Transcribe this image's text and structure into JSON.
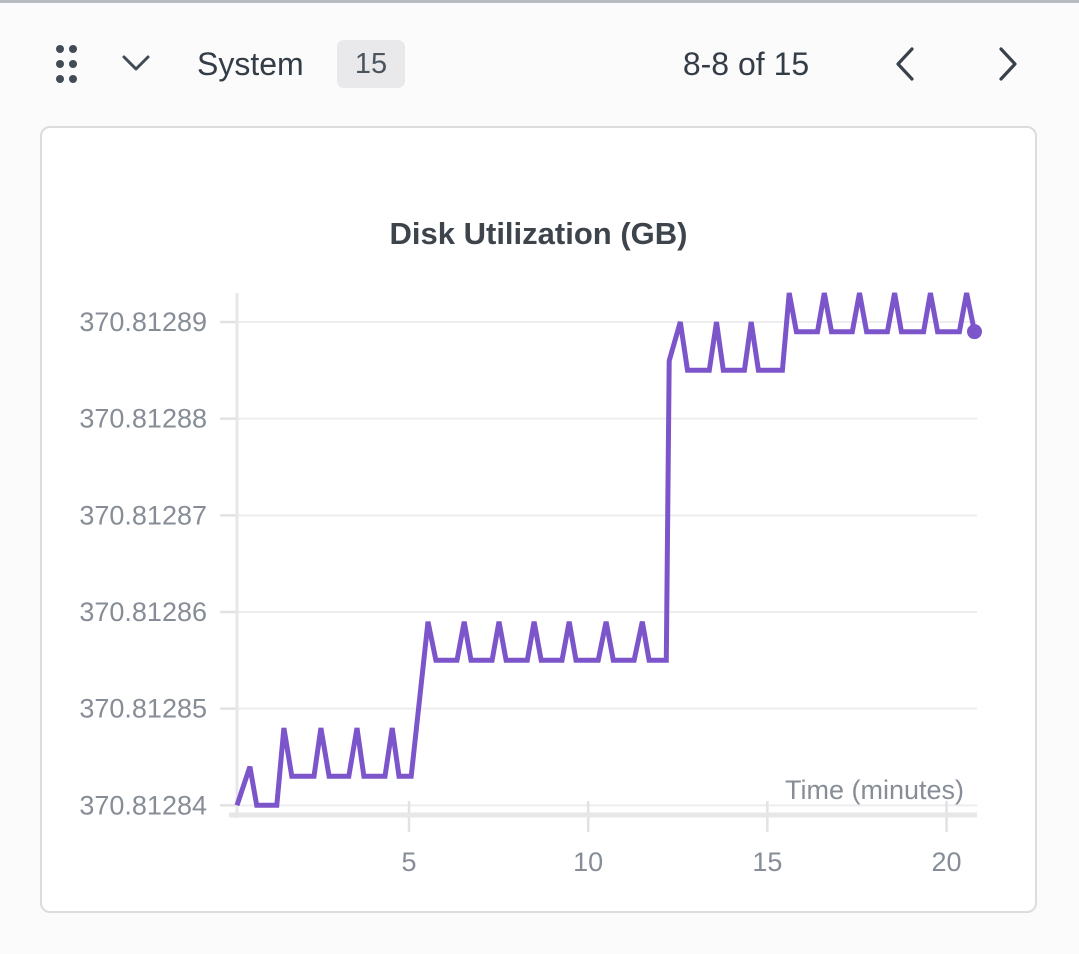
{
  "header": {
    "title": "System",
    "badge_count": "15",
    "pagination": "8-8 of 15",
    "icons": {
      "drag_handle": "six-dot-grid",
      "collapse": "chevron-down",
      "prev": "chevron-left",
      "next": "chevron-right"
    }
  },
  "colors": {
    "series": "#7d55cb",
    "gridline": "#ededef",
    "axis": "#e7e7e9",
    "tick": "#e2e2e4",
    "badge_bg": "#e9e9eb",
    "header_text": "#343c46",
    "icon": "#424a55"
  },
  "chart_data": {
    "type": "line",
    "title": "Disk Utilization (GB)",
    "xlabel": "Time (minutes)",
    "ylabel": "",
    "unit": "GB",
    "grid": "horizontal",
    "legend": "none",
    "end_marker": true,
    "xlim": [
      0.2,
      20.85
    ],
    "ylim": [
      370.812839,
      370.812893
    ],
    "xticks": [
      5,
      10,
      15,
      20
    ],
    "yticks": [
      370.81284,
      370.81285,
      370.81286,
      370.81287,
      370.81288,
      370.81289
    ],
    "ytick_labels": [
      "370.81284",
      "370.81285",
      "370.81286",
      "370.81287",
      "370.81288",
      "370.81289"
    ],
    "series": [
      {
        "name": "Disk Utilization",
        "color": "#7d55cb",
        "points": [
          [
            0.2,
            370.81284
          ],
          [
            0.56,
            370.812844
          ],
          [
            0.75,
            370.81284
          ],
          [
            1.31,
            370.81284
          ],
          [
            1.51,
            370.812848
          ],
          [
            1.73,
            370.812843
          ],
          [
            2.35,
            370.812843
          ],
          [
            2.54,
            370.812848
          ],
          [
            2.77,
            370.812843
          ],
          [
            3.32,
            370.812843
          ],
          [
            3.55,
            370.812848
          ],
          [
            3.74,
            370.812843
          ],
          [
            4.33,
            370.812843
          ],
          [
            4.53,
            370.812848
          ],
          [
            4.72,
            370.812843
          ],
          [
            5.06,
            370.812843
          ],
          [
            5.53,
            370.812859
          ],
          [
            5.75,
            370.812855
          ],
          [
            6.34,
            370.812855
          ],
          [
            6.54,
            370.812859
          ],
          [
            6.73,
            370.812855
          ],
          [
            7.32,
            370.812855
          ],
          [
            7.51,
            370.812859
          ],
          [
            7.71,
            370.812855
          ],
          [
            8.3,
            370.812855
          ],
          [
            8.49,
            370.812859
          ],
          [
            8.69,
            370.812855
          ],
          [
            9.27,
            370.812855
          ],
          [
            9.47,
            370.812859
          ],
          [
            9.66,
            370.812855
          ],
          [
            10.28,
            370.812855
          ],
          [
            10.5,
            370.812859
          ],
          [
            10.7,
            370.812855
          ],
          [
            11.28,
            370.812855
          ],
          [
            11.51,
            370.812859
          ],
          [
            11.7,
            370.812855
          ],
          [
            12.18,
            370.812855
          ],
          [
            12.26,
            370.812886
          ],
          [
            12.57,
            370.81289
          ],
          [
            12.77,
            370.812885
          ],
          [
            13.38,
            370.812885
          ],
          [
            13.58,
            370.81289
          ],
          [
            13.77,
            370.812885
          ],
          [
            14.36,
            370.812885
          ],
          [
            14.55,
            370.81289
          ],
          [
            14.75,
            370.812885
          ],
          [
            15.42,
            370.812885
          ],
          [
            15.61,
            370.812893
          ],
          [
            15.81,
            370.812889
          ],
          [
            16.4,
            370.812889
          ],
          [
            16.59,
            370.812893
          ],
          [
            16.79,
            370.812889
          ],
          [
            17.37,
            370.812889
          ],
          [
            17.57,
            370.812893
          ],
          [
            17.77,
            370.812889
          ],
          [
            18.35,
            370.812889
          ],
          [
            18.55,
            370.812893
          ],
          [
            18.74,
            370.812889
          ],
          [
            19.36,
            370.812889
          ],
          [
            19.55,
            370.812893
          ],
          [
            19.75,
            370.812889
          ],
          [
            20.36,
            370.812889
          ],
          [
            20.56,
            370.812893
          ],
          [
            20.78,
            370.812889
          ]
        ]
      }
    ]
  }
}
